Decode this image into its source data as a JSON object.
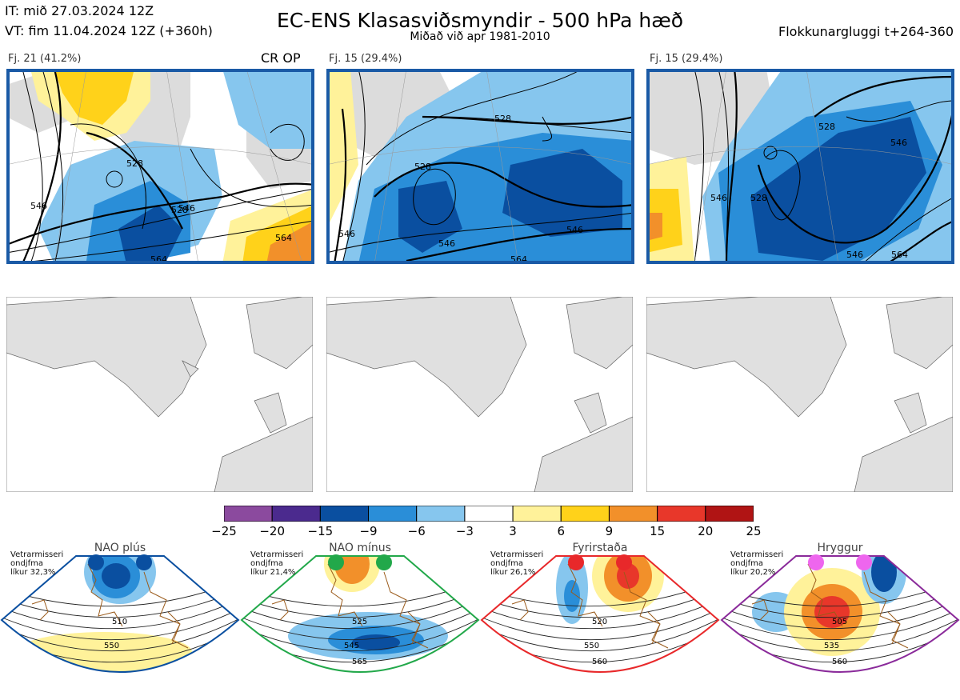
{
  "header": {
    "it_line": "IT: mið 27.03.2024 12Z",
    "vt_line": "VT: fim 11.04.2024 12Z  (+360h)",
    "title": "EC-ENS Klasasviðsmyndir - 500 hPa hæð",
    "subtitle": "Miðað við apr 1981-2010",
    "window": "Flokkunargluggi t+264-360"
  },
  "clusters": [
    {
      "label": "Fj. 21 (41.2%)",
      "badge": "CR OP",
      "contours": [
        "528",
        "528",
        "546",
        "546",
        "564",
        "564"
      ]
    },
    {
      "label": "Fj. 15 (29.4%)",
      "badge": "",
      "contours": [
        "528",
        "528",
        "546",
        "546",
        "564",
        "546"
      ]
    },
    {
      "label": "Fj. 15 (29.4%)",
      "badge": "",
      "contours": [
        "546",
        "528",
        "528",
        "546",
        "546",
        "564"
      ]
    }
  ],
  "colorbar": {
    "ticks": [
      "−25",
      "−20",
      "−15",
      "−9",
      "−6",
      "−3",
      "3",
      "6",
      "9",
      "15",
      "20",
      "25"
    ],
    "colors": [
      "#8b4a9e",
      "#4b2a8e",
      "#0a4fa0",
      "#2a8ed8",
      "#86c6ee",
      "#ffffff",
      "#fff29a",
      "#ffd21a",
      "#f2902a",
      "#e8372a",
      "#b01414"
    ]
  },
  "regimes": [
    {
      "name": "NAO plús",
      "info": [
        "Vetrarmisseri",
        "ondjfma",
        "líkur 32,3%"
      ],
      "dot_color": "#0a4fa0",
      "frame_color": "#0a4fa0",
      "contours": [
        "510",
        "550"
      ]
    },
    {
      "name": "NAO mínus",
      "info": [
        "Vetrarmisseri",
        "ondjfma",
        "líkur 21,4%"
      ],
      "dot_color": "#22a84a",
      "frame_color": "#22a84a",
      "contours": [
        "525",
        "545",
        "565"
      ]
    },
    {
      "name": "Fyrirstaða",
      "info": [
        "Vetrarmisseri",
        "ondjfma",
        "líkur 26,1%"
      ],
      "dot_color": "#e8282a",
      "frame_color": "#e8282a",
      "contours": [
        "520",
        "550",
        "560"
      ]
    },
    {
      "name": "Hryggur",
      "info": [
        "Vetrarmisseri",
        "ondjfma",
        "líkur 20,2%"
      ],
      "dot_color": "#ee66ee",
      "frame_color": "#8a2a9a",
      "contours": [
        "505",
        "535",
        "560"
      ]
    }
  ]
}
